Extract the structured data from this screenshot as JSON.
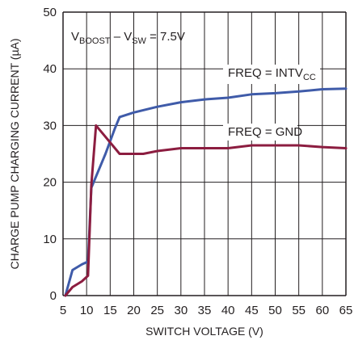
{
  "chart_data": {
    "type": "line",
    "title": "",
    "xlabel": "SWITCH VOLTAGE (V)",
    "ylabel": "CHARGE PUMP CHARGING CURRENT (µA)",
    "xlim": [
      5,
      65
    ],
    "ylim": [
      0,
      50
    ],
    "xticks": [
      5,
      10,
      15,
      20,
      25,
      30,
      35,
      40,
      45,
      50,
      55,
      60,
      65
    ],
    "yticks": [
      0,
      10,
      20,
      30,
      40,
      50
    ],
    "grid": true,
    "annotations": {
      "condition": {
        "main": "V",
        "sub1": "BOOST",
        "mid": " – V",
        "sub2": "SW",
        "tail": " = 7.5V"
      },
      "label_intvcc": {
        "main": "FREQ = INTV",
        "sub": "CC"
      },
      "label_gnd": {
        "text": "FREQ = GND"
      }
    },
    "colors": {
      "freq_intvcc": "#3f5ba9",
      "freq_gnd": "#8c1d40",
      "grid": "#231f20"
    },
    "series": [
      {
        "key": "freq_intvcc",
        "x": [
          5.5,
          7,
          9,
          10.3,
          11,
          12,
          14,
          16,
          17,
          20,
          25,
          30,
          35,
          40,
          45,
          50,
          55,
          60,
          65
        ],
        "y": [
          0,
          4.5,
          5.5,
          6,
          19,
          21,
          25,
          29.5,
          31.5,
          32.3,
          33.3,
          34.1,
          34.6,
          34.9,
          35.5,
          35.7,
          36.0,
          36.4,
          36.5
        ]
      },
      {
        "key": "freq_gnd",
        "x": [
          5.5,
          7,
          9,
          10.3,
          11,
          12,
          14,
          16,
          17,
          20,
          22,
          25,
          30,
          35,
          40,
          45,
          50,
          55,
          60,
          65
        ],
        "y": [
          0,
          1.5,
          2.5,
          3.5,
          19.5,
          30,
          28,
          26,
          25,
          25,
          25,
          25.5,
          26,
          26,
          26,
          26.5,
          26.5,
          26.5,
          26.2,
          26
        ]
      }
    ]
  }
}
